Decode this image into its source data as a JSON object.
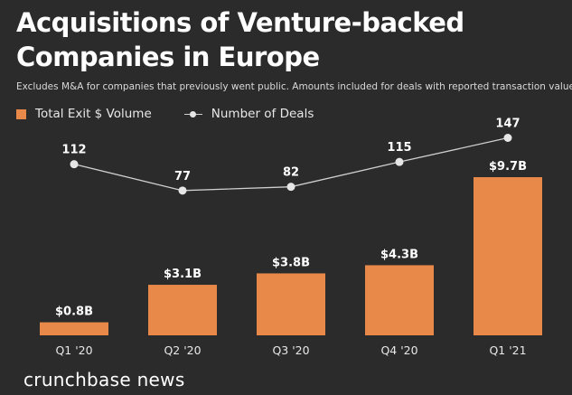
{
  "chart_data": {
    "type": "bar",
    "title": "Acquisitions of Venture-backed Companies in Europe",
    "subtitle": "Excludes M&A for companies that previously went public. Amounts included for deals with reported transaction values.",
    "categories": [
      "Q1 '20",
      "Q2 '20",
      "Q3 '20",
      "Q4 '20",
      "Q1 '21"
    ],
    "series": [
      {
        "name": "Total Exit $ Volume",
        "type": "bar",
        "values": [
          0.8,
          3.1,
          3.8,
          4.3,
          9.7
        ],
        "labels": [
          "$0.8B",
          "$3.1B",
          "$3.8B",
          "$4.3B",
          "$9.7B"
        ],
        "unit": "$B",
        "color": "#e8894a"
      },
      {
        "name": "Number of Deals",
        "type": "line",
        "values": [
          112,
          77,
          82,
          115,
          147
        ],
        "labels": [
          "112",
          "77",
          "82",
          "115",
          "147"
        ],
        "color": "#e6e6e6"
      }
    ],
    "xlabel": "",
    "ylabel": "",
    "legend_position": "top-left"
  },
  "brand": "crunchbase news",
  "colors": {
    "background": "#2b2b2b",
    "bar": "#e8894a",
    "line": "#cfcfcf",
    "marker": "#e6e6e6"
  }
}
